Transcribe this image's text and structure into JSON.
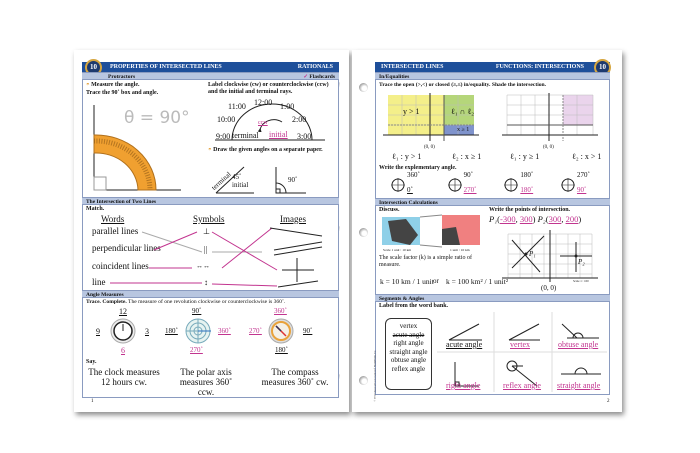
{
  "left": {
    "header": {
      "title": "PROPERTIES OF INTERSECTED LINES",
      "right": "RATIONALS",
      "badge": "10"
    },
    "protractors": {
      "section": "Protractors",
      "flashcards": "Flashcards",
      "measure": "Measure the angle.",
      "trace": "Trace the 90˚ box and angle.",
      "theta": "θ = 90°",
      "label_instr": "Label clockwise (cw) or counterclockwise (ccw) and the initial and terminal rays.",
      "clock": [
        "11:00",
        "12:00",
        "1:00",
        "10:00",
        "2:00",
        "9:00",
        "3:00"
      ],
      "terminal": "terminal",
      "initial": "initial",
      "ccw": "ccw",
      "draw": "Draw the given angles on a separate paper.",
      "a1_terminal": "terminal",
      "a1_angle": "45˚",
      "a1_initial": "initial",
      "a2_angle": "90˚"
    },
    "intersection": {
      "section": "The Intersection of Two Lines",
      "match": "Match.",
      "headers": [
        "Words",
        "Symbols",
        "Images"
      ],
      "words": [
        "parallel lines",
        "perpendicular lines",
        "coincident lines",
        "line"
      ],
      "symbols": [
        "⊥",
        "||",
        "↔↔",
        "↕"
      ]
    },
    "angles": {
      "section": "Angle Measures",
      "instr_bold": "Trace. Complete.",
      "instr": " The measure of one revolution clockwise or counterclockwise is 360˚.",
      "clock": {
        "top": "12",
        "left": "9",
        "right": "3",
        "bottom": "6"
      },
      "polar": {
        "top": "90˚",
        "left": "180˚",
        "right": "360˚",
        "bottom": "270˚"
      },
      "compass": {
        "top": "360˚",
        "left": "270˚",
        "right": "90˚",
        "bottom": "180˚"
      },
      "say": "Say.",
      "sentences": [
        "The clock measures 12 hours cw.",
        "The polar axis measures 360˚ ccw.",
        "The compass measures 360˚ cw."
      ]
    },
    "page_number": "1"
  },
  "right": {
    "header": {
      "title": "INTERSECTED LINES",
      "right": "FUNCTIONS: INTERSECTIONS",
      "badge": "10"
    },
    "inequalities": {
      "section": "In/Equalities",
      "instr": "Trace the open (>,<) or closed (≥,≤) in/equality. Shade the intersection.",
      "graph1": {
        "region_y": "y > 1",
        "region_both": "ℓ₁ ∩ ℓ₂",
        "region_x": "x ≥ 1",
        "origin": "(0, 0)",
        "l1": "ℓ₁ : y > 1",
        "l2": "ℓ₂ : x ≥ 1"
      },
      "graph2": {
        "origin": "(0, 0)",
        "l1": "ℓ₁ : y ≥ 1",
        "l2": "ℓ₂ : x > 1"
      },
      "explementary": "Write the explementary angle.",
      "pairs": [
        {
          "given": "360˚",
          "answer": "0˚"
        },
        {
          "given": "90˚",
          "answer": "270˚"
        },
        {
          "given": "180˚",
          "answer": "180˚"
        },
        {
          "given": "270˚",
          "answer": "90˚"
        }
      ]
    },
    "calc": {
      "section": "Intersection Calculations",
      "discuss": "Discuss.",
      "scale1": "Scale  1 unit : 10 km",
      "scale2": "1 unit : 10 km",
      "text": "The scale factor (k) is a simple ratio of measure.",
      "k1": "k = 10 km / 1 unit",
      "or": "or",
      "k2": "k = 100 km² / 1 unit²",
      "points_instr": "Write the points of intersection.",
      "p1": {
        "label": "P₁",
        "x": "-300",
        "y": "300"
      },
      "p2": {
        "label": "P₂",
        "x": "300",
        "y": "200"
      },
      "origin": "(0, 0)",
      "scale": "Scale 1 : 100"
    },
    "segments": {
      "section": "Segments & Angles",
      "instr": "Label from the word bank.",
      "bank": [
        "vertex",
        "acute angle",
        "right angle",
        "straight angle",
        "obtuse angle",
        "reflex angle"
      ],
      "labels": [
        "acute angle",
        "vertex",
        "obtuse angle",
        "right angle",
        "reflex angle",
        "straight angle"
      ]
    },
    "copyright": "© 2015 Classical Conversations® MultiMedia, Inc.",
    "page_number": "2"
  },
  "colors": {
    "header": "#1e4f9a",
    "subheader": "#b8c6e0",
    "answer": "#c2348f",
    "yellow": "#f4ef8a",
    "green": "#b5d67a",
    "blue": "#7f93cc",
    "lavender": "#ead4ec"
  }
}
